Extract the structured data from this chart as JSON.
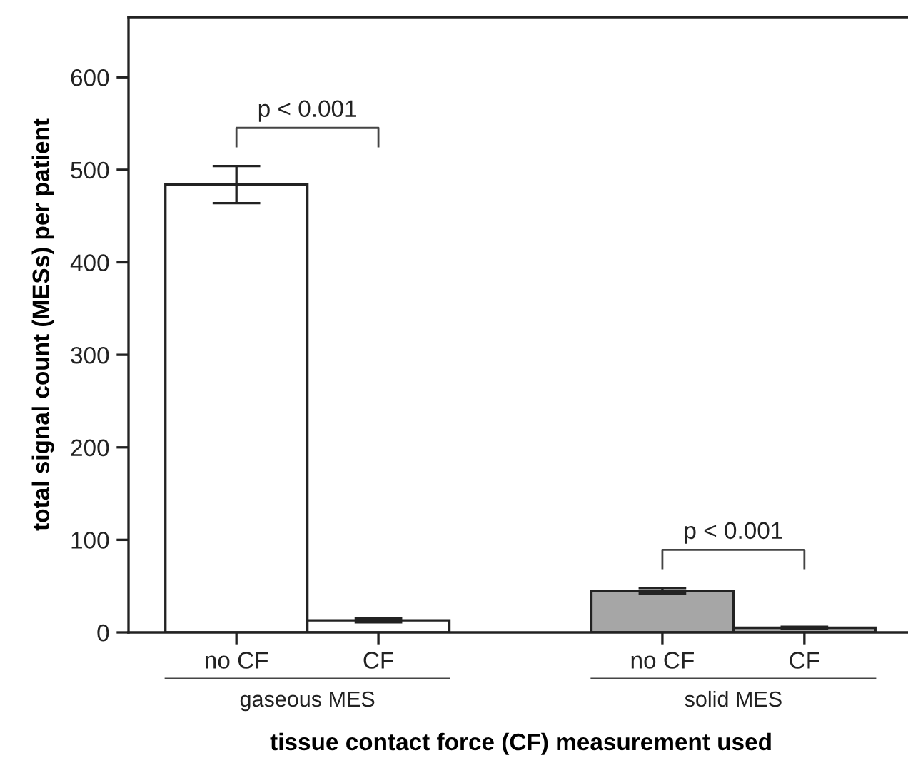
{
  "chart_data": {
    "type": "bar",
    "categories": [
      "no CF",
      "CF",
      null,
      "no CF",
      "CF"
    ],
    "values": [
      484,
      13,
      null,
      45,
      5
    ],
    "errors": [
      20,
      2,
      null,
      3,
      1
    ],
    "colors": [
      "#ffffff",
      "#ffffff",
      "#ffffff",
      "#a6a6a6",
      "#a6a6a6"
    ],
    "ylim": [
      0,
      665
    ],
    "yticks": [
      0,
      100,
      200,
      300,
      400,
      500,
      600
    ],
    "xlabel": "tissue contact force (CF) measurement used",
    "ylabel": "total signal count (MESs) per patient",
    "annotations": [
      "p < 0.001",
      "p < 0.001",
      "gaseous MES",
      "solid MES"
    ],
    "grid": false,
    "legend": false
  }
}
